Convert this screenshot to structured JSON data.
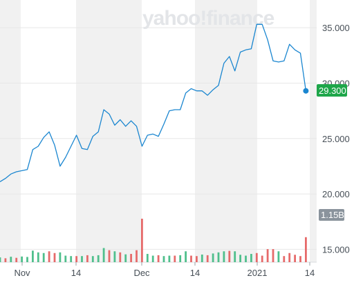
{
  "watermark": "yahoo!finance",
  "colors": {
    "line": "#1a86d0",
    "up_volume": "#4fbf8c",
    "down_volume": "#e66a6a",
    "price_badge": "#1ea64a",
    "volume_badge": "#8a939c",
    "band": "#f1f1f1",
    "grid": "#e7e7e7",
    "axis_text": "#464e56"
  },
  "chart_data": {
    "type": "line",
    "x_ticks": [
      "Nov",
      "14",
      "Dec",
      "14",
      "2021",
      "14"
    ],
    "y_ticks": [
      "35.000",
      "30.000",
      "25.000",
      "20.000",
      "15.000"
    ],
    "ylim": [
      11.6,
      37.5
    ],
    "last_price_label": "29.300",
    "volume_label": "1.15B",
    "grid": true,
    "series": [
      {
        "values": [
          21.1,
          21.4,
          21.8,
          22.0,
          22.1,
          22.2,
          24.0,
          24.3,
          25.1,
          25.6,
          24.4,
          22.5,
          23.3,
          24.3,
          25.3,
          24.1,
          24.0,
          25.2,
          25.6,
          27.6,
          27.2,
          26.2,
          26.7,
          26.1,
          26.6,
          26.1,
          24.3,
          25.3,
          25.4,
          25.2,
          26.3,
          27.5,
          27.6,
          27.6,
          29.1,
          29.5,
          29.3,
          29.3,
          28.9,
          29.4,
          29.8,
          31.8,
          32.4,
          31.1,
          32.8,
          33.0,
          33.1,
          35.3,
          35.3,
          33.9,
          32.0,
          31.9,
          32.0,
          33.5,
          33.0,
          32.7,
          29.3
        ]
      }
    ],
    "volume": {
      "up": [
        true,
        false,
        true,
        false,
        true,
        true,
        true,
        true,
        true,
        false,
        false,
        true,
        true,
        true,
        false,
        true,
        false,
        true,
        true,
        true,
        false,
        true,
        false,
        true,
        false,
        false,
        false,
        true,
        true,
        false,
        true,
        true,
        false,
        true,
        true,
        false,
        false,
        true,
        false,
        true,
        true,
        true,
        false,
        true,
        true,
        true,
        true,
        false,
        false,
        false,
        false,
        true,
        false,
        false,
        false,
        false,
        false
      ],
      "values": [
        0.22,
        0.18,
        0.25,
        0.2,
        0.26,
        0.24,
        0.53,
        0.45,
        0.42,
        0.5,
        0.42,
        0.45,
        0.3,
        0.28,
        0.28,
        0.28,
        0.32,
        0.28,
        0.32,
        0.65,
        0.55,
        0.5,
        0.45,
        0.36,
        0.38,
        0.55,
        2.0,
        0.38,
        0.3,
        0.32,
        0.28,
        0.3,
        0.3,
        0.32,
        0.5,
        0.3,
        0.28,
        0.35,
        0.32,
        0.4,
        0.45,
        0.5,
        0.52,
        0.5,
        0.34,
        0.3,
        0.38,
        0.42,
        0.3,
        0.6,
        0.6,
        0.5,
        0.28,
        0.42,
        0.34,
        0.28,
        1.15
      ]
    }
  }
}
